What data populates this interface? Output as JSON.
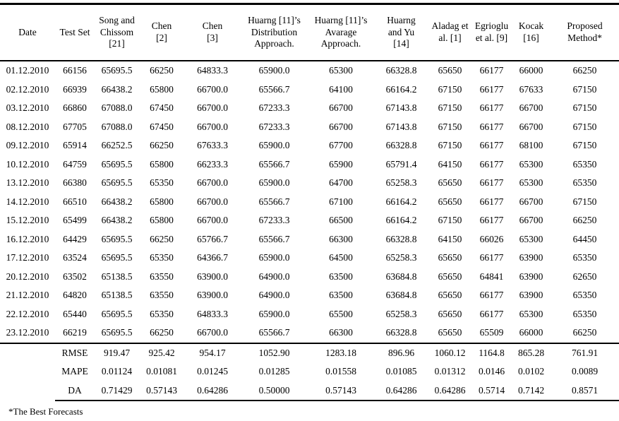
{
  "table": {
    "columns": [
      {
        "id": "date",
        "label": "Date"
      },
      {
        "id": "test-set",
        "label": "Test Set"
      },
      {
        "id": "song-chissom-21",
        "label": "Song and\nChissom\n[21]"
      },
      {
        "id": "chen-2",
        "label": "Chen\n[2]"
      },
      {
        "id": "chen-3",
        "label": "Chen\n[3]"
      },
      {
        "id": "huarng-11-distribution",
        "label": "Huarng [11]’s\nDistribution\nApproach."
      },
      {
        "id": "huarng-11-avarage",
        "label": "Huarng [11]’s\nAvarage\nApproach."
      },
      {
        "id": "huarng-yu-14",
        "label": "Huarng\nand Yu\n[14]"
      },
      {
        "id": "aladag-1",
        "label": "Aladag et\nal. [1]"
      },
      {
        "id": "egrioglu-9",
        "label": "Egrioglu\net al. [9]"
      },
      {
        "id": "kocak-16",
        "label": "Kocak\n[16]"
      },
      {
        "id": "proposed-method",
        "label": "Proposed\nMethod*"
      }
    ],
    "rows": [
      [
        "01.12.2010",
        "66156",
        "65695.5",
        "66250",
        "64833.3",
        "65900.0",
        "65300",
        "66328.8",
        "65650",
        "66177",
        "66000",
        "66250"
      ],
      [
        "02.12.2010",
        "66939",
        "66438.2",
        "65800",
        "66700.0",
        "65566.7",
        "64100",
        "66164.2",
        "67150",
        "66177",
        "67633",
        "67150"
      ],
      [
        "03.12.2010",
        "66860",
        "67088.0",
        "67450",
        "66700.0",
        "67233.3",
        "66700",
        "67143.8",
        "67150",
        "66177",
        "66700",
        "67150"
      ],
      [
        "08.12.2010",
        "67705",
        "67088.0",
        "67450",
        "66700.0",
        "67233.3",
        "66700",
        "67143.8",
        "67150",
        "66177",
        "66700",
        "67150"
      ],
      [
        "09.12.2010",
        "65914",
        "66252.5",
        "66250",
        "67633.3",
        "65900.0",
        "67700",
        "66328.8",
        "67150",
        "66177",
        "68100",
        "67150"
      ],
      [
        "10.12.2010",
        "64759",
        "65695.5",
        "65800",
        "66233.3",
        "65566.7",
        "65900",
        "65791.4",
        "64150",
        "66177",
        "65300",
        "65350"
      ],
      [
        "13.12.2010",
        "66380",
        "65695.5",
        "65350",
        "66700.0",
        "65900.0",
        "64700",
        "65258.3",
        "65650",
        "66177",
        "65300",
        "65350"
      ],
      [
        "14.12.2010",
        "66510",
        "66438.2",
        "65800",
        "66700.0",
        "65566.7",
        "67100",
        "66164.2",
        "65650",
        "66177",
        "66700",
        "67150"
      ],
      [
        "15.12.2010",
        "65499",
        "66438.2",
        "65800",
        "66700.0",
        "67233.3",
        "66500",
        "66164.2",
        "67150",
        "66177",
        "66700",
        "66250"
      ],
      [
        "16.12.2010",
        "64429",
        "65695.5",
        "66250",
        "65766.7",
        "65566.7",
        "66300",
        "66328.8",
        "64150",
        "66026",
        "65300",
        "64450"
      ],
      [
        "17.12.2010",
        "63524",
        "65695.5",
        "65350",
        "64366.7",
        "65900.0",
        "64500",
        "65258.3",
        "65650",
        "66177",
        "63900",
        "65350"
      ],
      [
        "20.12.2010",
        "63502",
        "65138.5",
        "63550",
        "63900.0",
        "64900.0",
        "63500",
        "63684.8",
        "65650",
        "64841",
        "63900",
        "62650"
      ],
      [
        "21.12.2010",
        "64820",
        "65138.5",
        "63550",
        "63900.0",
        "64900.0",
        "63500",
        "63684.8",
        "65650",
        "66177",
        "63900",
        "65350"
      ],
      [
        "22.12.2010",
        "65440",
        "65695.5",
        "65350",
        "64833.3",
        "65900.0",
        "65500",
        "65258.3",
        "65650",
        "66177",
        "65300",
        "65350"
      ],
      [
        "23.12.2010",
        "66219",
        "65695.5",
        "66250",
        "66700.0",
        "65566.7",
        "66300",
        "66328.8",
        "65650",
        "65509",
        "66000",
        "66250"
      ]
    ],
    "stats": [
      {
        "label": "RMSE",
        "values": [
          "919.47",
          "925.42",
          "954.17",
          "1052.90",
          "1283.18",
          "896.96",
          "1060.12",
          "1164.8",
          "865.28",
          "761.91"
        ]
      },
      {
        "label": "MAPE",
        "values": [
          "0.01124",
          "0.01081",
          "0.01245",
          "0.01285",
          "0.01558",
          "0.01085",
          "0.01312",
          "0.0146",
          "0.0102",
          "0.0089"
        ]
      },
      {
        "label": "DA",
        "values": [
          "0.71429",
          "0.57143",
          "0.64286",
          "0.50000",
          "0.57143",
          "0.64286",
          "0.64286",
          "0.5714",
          "0.7142",
          "0.8571"
        ]
      }
    ]
  },
  "footnote": "*The Best Forecasts",
  "colors": {
    "text": "#000000",
    "rule": "#000000",
    "background": "#ffffff"
  }
}
